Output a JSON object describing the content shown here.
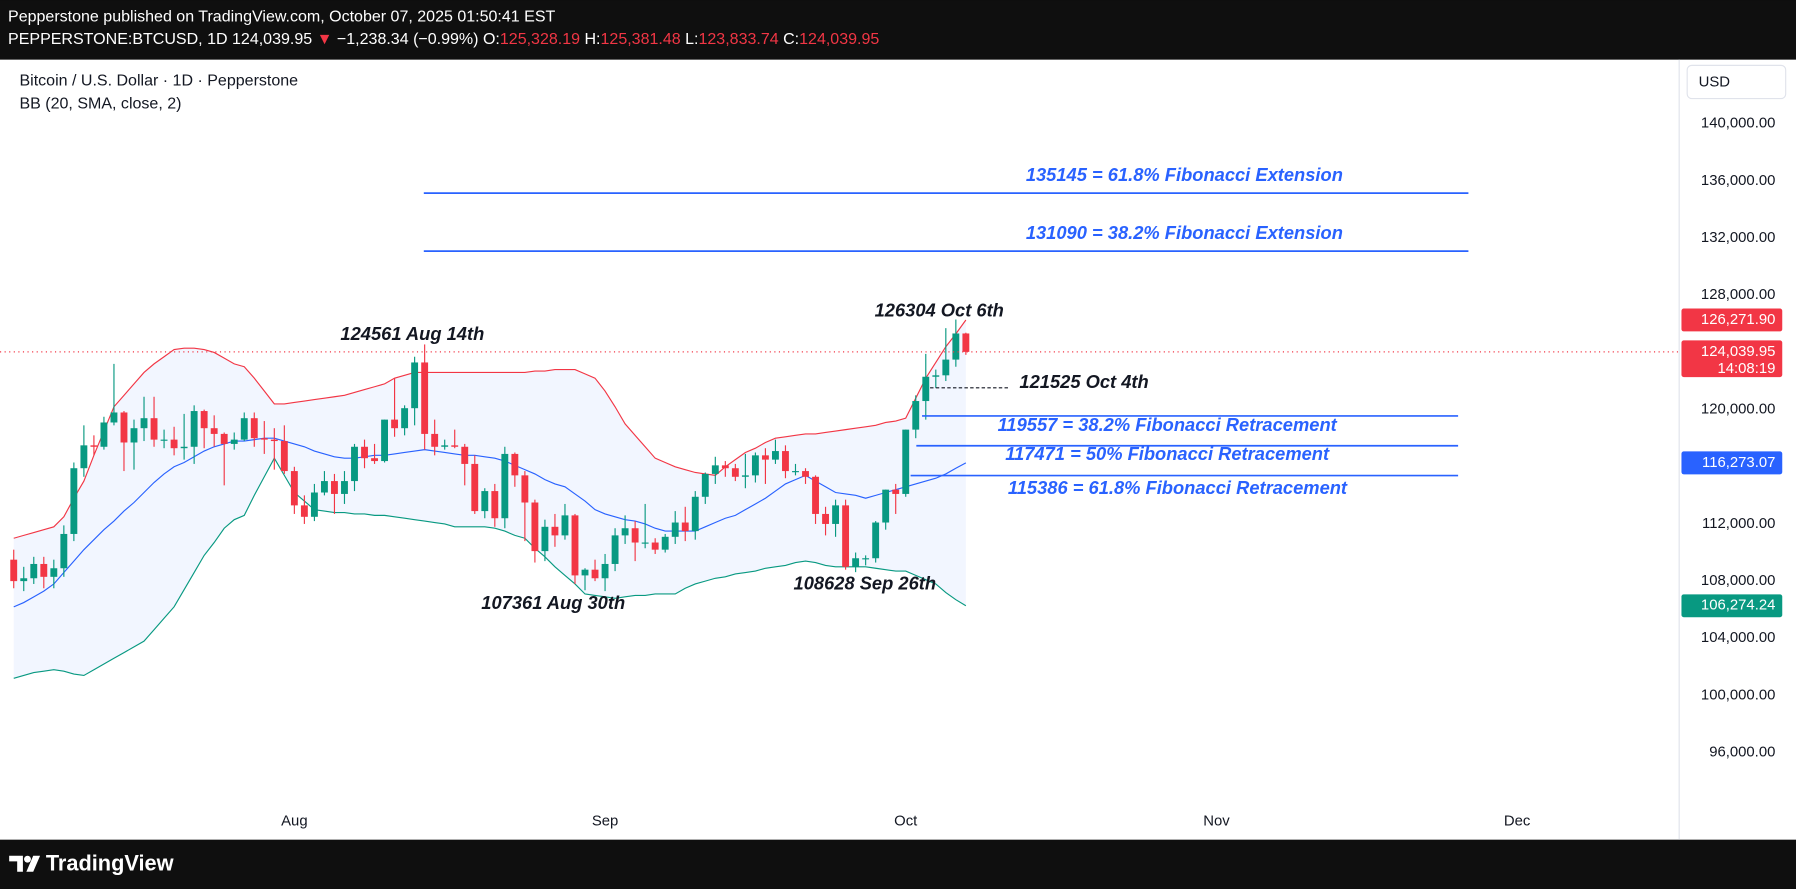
{
  "header": {
    "title": "Pepperstone published on TradingView.com, October 07, 2025 01:50:41 EST",
    "quote": [
      {
        "text": "PEPPERSTONE:BTCUSD, 1D ",
        "color": "#ffffff"
      },
      {
        "text": "124,039.95 ",
        "color": "#ffffff"
      },
      {
        "text": "▼",
        "color": "#f23645"
      },
      {
        "text": " −1,238.34 (−0.99%) ",
        "color": "#ffffff"
      },
      {
        "text": "O:",
        "color": "#ffffff"
      },
      {
        "text": "125,328.19 ",
        "color": "#f23645"
      },
      {
        "text": "H:",
        "color": "#ffffff"
      },
      {
        "text": "125,381.48 ",
        "color": "#f23645"
      },
      {
        "text": "L:",
        "color": "#ffffff"
      },
      {
        "text": "123,833.74 ",
        "color": "#f23645"
      },
      {
        "text": "C:",
        "color": "#ffffff"
      },
      {
        "text": "124,039.95",
        "color": "#f23645"
      }
    ]
  },
  "footer": {
    "brand": "TradingView"
  },
  "chart_data": {
    "type": "candlestick",
    "title": "Bitcoin / U.S. Dollar · 1D · Pepperstone",
    "indicator": "BB (20, SMA, close, 2)",
    "currency": "USD",
    "up_color": "#089981",
    "down_color": "#f23645",
    "grid": false,
    "xlim": [
      -1.37,
      166.17
    ],
    "xticks": [
      {
        "value": 28,
        "label": "Aug"
      },
      {
        "value": 59,
        "label": "Sep"
      },
      {
        "value": 89,
        "label": "Oct"
      },
      {
        "value": 120,
        "label": "Nov"
      },
      {
        "value": 150,
        "label": "Dec"
      }
    ],
    "ylim": [
      92153,
      144488
    ],
    "yticks": [
      {
        "value": 96000,
        "label": "96,000.00"
      },
      {
        "value": 100000,
        "label": "100,000.00"
      },
      {
        "value": 104000,
        "label": "104,000.00"
      },
      {
        "value": 108000,
        "label": "108,000.00"
      },
      {
        "value": 112000,
        "label": "112,000.00"
      },
      {
        "value": 116000,
        "label": "116,000.00"
      },
      {
        "value": 120000,
        "label": "120,000.00"
      },
      {
        "value": 124000,
        "label": "124,000.00"
      },
      {
        "value": 128000,
        "label": "128,000.00"
      },
      {
        "value": 132000,
        "label": "132,000.00"
      },
      {
        "value": 136000,
        "label": "136,000.00"
      },
      {
        "value": 140000,
        "label": "140,000.00"
      }
    ],
    "open": [
      109500,
      108000,
      108200,
      109200,
      108300,
      108900,
      111300,
      115900,
      117500,
      117400,
      119100,
      119800,
      117700,
      118700,
      119400,
      117900,
      117900,
      117300,
      117400,
      119900,
      118700,
      118300,
      117600,
      117900,
      119400,
      118000,
      117900,
      117800,
      115700,
      113300,
      112500,
      114200,
      115000,
      114100,
      115000,
      117400,
      116600,
      116400,
      119300,
      118700,
      120100,
      123300,
      118300,
      117400,
      117500,
      117400,
      116200,
      112900,
      114300,
      112400,
      116900,
      115400,
      113500,
      110100,
      111800,
      111200,
      112600,
      108400,
      108800,
      108200,
      109200,
      111200,
      111700,
      110700,
      110700,
      110200,
      111100,
      112100,
      111500,
      113900,
      115500,
      116100,
      115900,
      115300,
      115400,
      116800,
      116500,
      117100,
      115700,
      115700,
      115300,
      112700,
      112000,
      113300,
      109000,
      109600,
      109600,
      112100,
      114400,
      114100,
      118600,
      120600,
      122300,
      122400,
      123500,
      125328.19
    ],
    "high": [
      110200,
      109000,
      109700,
      109700,
      109500,
      111900,
      116300,
      118900,
      118200,
      119500,
      123200,
      119900,
      119300,
      120900,
      120900,
      118600,
      118800,
      119700,
      120300,
      120000,
      119600,
      118400,
      118400,
      119800,
      119800,
      119200,
      118700,
      118900,
      116000,
      114000,
      114800,
      115700,
      115500,
      115700,
      117600,
      117900,
      117600,
      119300,
      122200,
      120300,
      123700,
      124561,
      119300,
      117900,
      118600,
      117600,
      116800,
      114500,
      114800,
      117400,
      117000,
      115700,
      113700,
      112300,
      112700,
      113400,
      112700,
      108900,
      109500,
      109900,
      111700,
      112600,
      112200,
      113400,
      111000,
      111300,
      112900,
      113200,
      114300,
      115600,
      116700,
      116400,
      116200,
      116900,
      117000,
      117300,
      117900,
      117500,
      116200,
      115900,
      115400,
      113200,
      113700,
      113700,
      110000,
      109800,
      112200,
      114400,
      114800,
      118600,
      121000,
      123900,
      122800,
      125700,
      126304,
      125381.48
    ],
    "low": [
      107500,
      107300,
      107800,
      107500,
      107500,
      108300,
      110800,
      115300,
      116800,
      117200,
      118900,
      115700,
      115800,
      117800,
      117400,
      117300,
      116800,
      116500,
      116200,
      117300,
      117400,
      114700,
      117200,
      117800,
      117400,
      116900,
      115800,
      115500,
      112700,
      112000,
      112200,
      114000,
      112700,
      113400,
      114300,
      115900,
      116200,
      116300,
      118100,
      118200,
      118900,
      117200,
      116800,
      117200,
      117300,
      114700,
      112700,
      112400,
      111800,
      111700,
      114600,
      110800,
      109300,
      109400,
      110400,
      110900,
      107800,
      107361,
      108000,
      107300,
      108700,
      110600,
      109400,
      110300,
      109900,
      110000,
      110600,
      110800,
      110900,
      113400,
      114800,
      115300,
      115000,
      114500,
      114900,
      114800,
      116200,
      115200,
      115400,
      114800,
      112000,
      111200,
      111100,
      108800,
      108628,
      109100,
      109300,
      111600,
      112700,
      113900,
      118000,
      119300,
      121525,
      122000,
      123000,
      123833.74
    ],
    "close": [
      108000,
      108200,
      109200,
      108300,
      108900,
      111300,
      115900,
      117500,
      117400,
      119100,
      119800,
      117700,
      118700,
      119400,
      117900,
      117900,
      117300,
      117400,
      119900,
      118700,
      118300,
      117600,
      117900,
      119400,
      118000,
      117900,
      117800,
      115700,
      113300,
      112500,
      114200,
      115000,
      114100,
      115000,
      117400,
      116600,
      116400,
      119300,
      118700,
      120100,
      123300,
      118300,
      117400,
      117500,
      117400,
      116200,
      112900,
      114300,
      112400,
      116900,
      115400,
      113500,
      110100,
      111800,
      111200,
      112600,
      108400,
      108800,
      108200,
      109200,
      111200,
      111700,
      110700,
      110700,
      110200,
      111100,
      112100,
      111500,
      113900,
      115500,
      116100,
      115900,
      115300,
      115400,
      116800,
      116500,
      117100,
      115700,
      115700,
      115300,
      112700,
      112000,
      113300,
      109000,
      109600,
      109600,
      112100,
      114400,
      114100,
      118600,
      120600,
      122300,
      122400,
      123500,
      125328.19,
      124039.95
    ],
    "last_label": "124,039.95",
    "countdown": "14:08:19",
    "band_fill": "rgba(41,98,255,0.06)",
    "bands": [
      {
        "color": "#f23645",
        "last_label": "126,271.90",
        "values": [
          111000,
          111200,
          111400,
          111600,
          111800,
          112500,
          113800,
          115000,
          116800,
          118500,
          120200,
          121000,
          121800,
          122600,
          123200,
          123700,
          124200,
          124300,
          124300,
          124200,
          124000,
          123600,
          123200,
          123000,
          122200,
          121300,
          120400,
          120400,
          120500,
          120600,
          120700,
          120800,
          120900,
          121000,
          121200,
          121400,
          121600,
          121800,
          122200,
          122400,
          122600,
          122600,
          122600,
          122600,
          122600,
          122600,
          122600,
          122600,
          122600,
          122600,
          122600,
          122600,
          122700,
          122700,
          122800,
          122800,
          122800,
          122500,
          122200,
          121300,
          120200,
          119000,
          118200,
          117400,
          116600,
          116300,
          116000,
          115800,
          115600,
          115500,
          115400,
          116000,
          116500,
          117000,
          117300,
          117700,
          118000,
          118100,
          118200,
          118300,
          118300,
          118400,
          118500,
          118600,
          118700,
          118800,
          118900,
          119100,
          119200,
          119400,
          120800,
          122200,
          123300,
          124400,
          125300,
          126271.9
        ]
      },
      {
        "color": "#2962ff",
        "last_label": "116,273.07",
        "values": [
          106200,
          106500,
          106900,
          107300,
          107800,
          108600,
          109400,
          110200,
          110900,
          111600,
          112200,
          112900,
          113500,
          114200,
          114900,
          115500,
          116000,
          116300,
          116700,
          117100,
          117400,
          117600,
          117800,
          117800,
          117900,
          118000,
          118000,
          117800,
          117600,
          117400,
          117100,
          116900,
          116700,
          116600,
          116600,
          116700,
          116800,
          116800,
          116900,
          117000,
          117100,
          117200,
          117100,
          117000,
          116900,
          116800,
          116800,
          116700,
          116600,
          116400,
          116100,
          115800,
          115500,
          115100,
          114800,
          114600,
          114100,
          113600,
          113000,
          112700,
          112500,
          112300,
          112200,
          112000,
          111700,
          111500,
          111500,
          111500,
          111500,
          111800,
          112100,
          112400,
          112600,
          113000,
          113400,
          113800,
          114300,
          114800,
          115100,
          115400,
          115000,
          114600,
          114200,
          114100,
          114000,
          113800,
          114000,
          114200,
          114400,
          114600,
          114800,
          115000,
          115200,
          115500,
          115900,
          116273.07
        ]
      },
      {
        "color": "#089981",
        "last_label": "106,274.24",
        "values": [
          101200,
          101400,
          101600,
          101700,
          101800,
          101700,
          101500,
          101400,
          101800,
          102200,
          102600,
          103000,
          103400,
          103800,
          104600,
          105400,
          106200,
          107400,
          108600,
          109800,
          110700,
          111700,
          112300,
          112600,
          114000,
          115300,
          116600,
          115400,
          114200,
          113600,
          113000,
          112900,
          112800,
          112800,
          112700,
          112700,
          112600,
          112600,
          112500,
          112400,
          112300,
          112200,
          112100,
          112000,
          111800,
          111800,
          111800,
          111800,
          111700,
          111500,
          111200,
          111000,
          110300,
          109700,
          109000,
          108400,
          107800,
          107100,
          107000,
          106900,
          106800,
          106900,
          107000,
          107000,
          107100,
          107100,
          107100,
          107500,
          107800,
          108000,
          108200,
          108300,
          108500,
          108600,
          108700,
          108900,
          109000,
          109100,
          109300,
          109400,
          109300,
          109100,
          109000,
          109000,
          109000,
          109000,
          108900,
          108800,
          108700,
          108700,
          108400,
          108100,
          107800,
          107200,
          106700,
          106274.24
        ]
      }
    ],
    "fib_color": "#2962ff",
    "fib_levels": [
      {
        "text": "135145 = 61.8% Fibonacci Extension",
        "value": 135145
      },
      {
        "text": "131090 = 38.2% Fibonacci Extension",
        "value": 131090
      },
      {
        "text": "119557 = 38.2% Fibonacci Retracement",
        "value": 119557
      },
      {
        "text": "117471 = 50% Fibonacci Retracement",
        "value": 117471
      },
      {
        "text": "115386 = 61.8% Fibonacci Retracement",
        "value": 115386
      }
    ],
    "price_labels": [
      {
        "text": "124561 Aug 14th",
        "value": 124561
      },
      {
        "text": "126304 Oct 6th",
        "value": 126304
      },
      {
        "text": "107361 Aug 30th",
        "value": 107361
      },
      {
        "text": "108628 Sep 26th",
        "value": 108628
      },
      {
        "text": "121525 Oct 4th",
        "value": 121525
      }
    ]
  }
}
